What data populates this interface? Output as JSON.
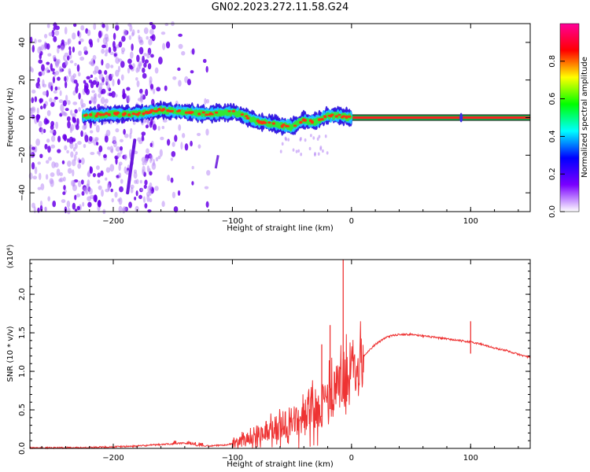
{
  "title": "GN02.2023.272.11.58.G24",
  "chart_data": [
    {
      "type": "heatmap",
      "xlabel": "Height of straight line (km)",
      "ylabel": "Frequency (Hz)",
      "xlim": [
        -270,
        150
      ],
      "ylim": [
        -50,
        50
      ],
      "x_ticks": [
        -200,
        -100,
        0,
        100
      ],
      "y_ticks": [
        -40,
        -20,
        0,
        20,
        40
      ],
      "colorbar": {
        "label": "Normalized spectral amplitude",
        "range": [
          0,
          1
        ],
        "ticks": [
          "0.0",
          "0.2",
          "0.4",
          "0.6",
          "0.8"
        ],
        "colors": [
          "#ffffff",
          "#7a00ff",
          "#0000ff",
          "#00ffff",
          "#00ff00",
          "#ffff00",
          "#ff0000",
          "#ff0099"
        ]
      },
      "ridge": {
        "x": [
          -225,
          -200,
          -180,
          -160,
          -140,
          -120,
          -100,
          -90,
          -80,
          -70,
          -60,
          -50,
          -45,
          -40,
          -35,
          -30,
          -20,
          -10,
          0,
          50,
          100,
          150
        ],
        "freq": [
          1,
          2,
          2,
          4,
          3,
          2,
          3,
          1,
          -2,
          -3,
          -4,
          -5,
          -3,
          -1,
          -2,
          -2,
          1,
          1,
          0,
          0,
          0,
          0
        ]
      },
      "noise_region_x": [
        -270,
        -120
      ]
    },
    {
      "type": "line",
      "xlabel": "Height of straight line (km)",
      "ylabel": "SNR (10 * v/v)",
      "y_exponent": "(x10⁴)",
      "xlim": [
        -270,
        150
      ],
      "ylim": [
        0,
        2.45
      ],
      "x_ticks": [
        -200,
        -100,
        0,
        100
      ],
      "y_ticks": [
        "0.0",
        "0.5",
        "1.0",
        "1.5",
        "2.0"
      ],
      "color": "#ee3333",
      "series": [
        {
          "x": [
            -270,
            -250,
            -225,
            -200,
            -180,
            -160,
            -150,
            -140,
            -130,
            -120,
            -110,
            -100,
            -90,
            -80,
            -70,
            -60,
            -50,
            -40,
            -30,
            -20,
            -15,
            -10,
            -5,
            0,
            10,
            20,
            30,
            40,
            50,
            60,
            70,
            80,
            90,
            100,
            110,
            120,
            130,
            140,
            150
          ],
          "y": [
            0.005,
            0.008,
            0.01,
            0.02,
            0.03,
            0.05,
            0.06,
            0.07,
            0.04,
            0.03,
            0.04,
            0.06,
            0.1,
            0.18,
            0.25,
            0.28,
            0.32,
            0.4,
            0.5,
            0.62,
            0.72,
            0.82,
            0.92,
            1.05,
            1.2,
            1.35,
            1.45,
            1.48,
            1.48,
            1.46,
            1.44,
            1.42,
            1.4,
            1.38,
            1.35,
            1.3,
            1.27,
            1.22,
            1.18
          ]
        }
      ],
      "spikes": [
        {
          "x": -25,
          "y": 1.35
        },
        {
          "x": -18,
          "y": 1.6
        },
        {
          "x": -7,
          "y": 2.45
        },
        {
          "x": 100,
          "y": 1.65
        }
      ]
    }
  ]
}
